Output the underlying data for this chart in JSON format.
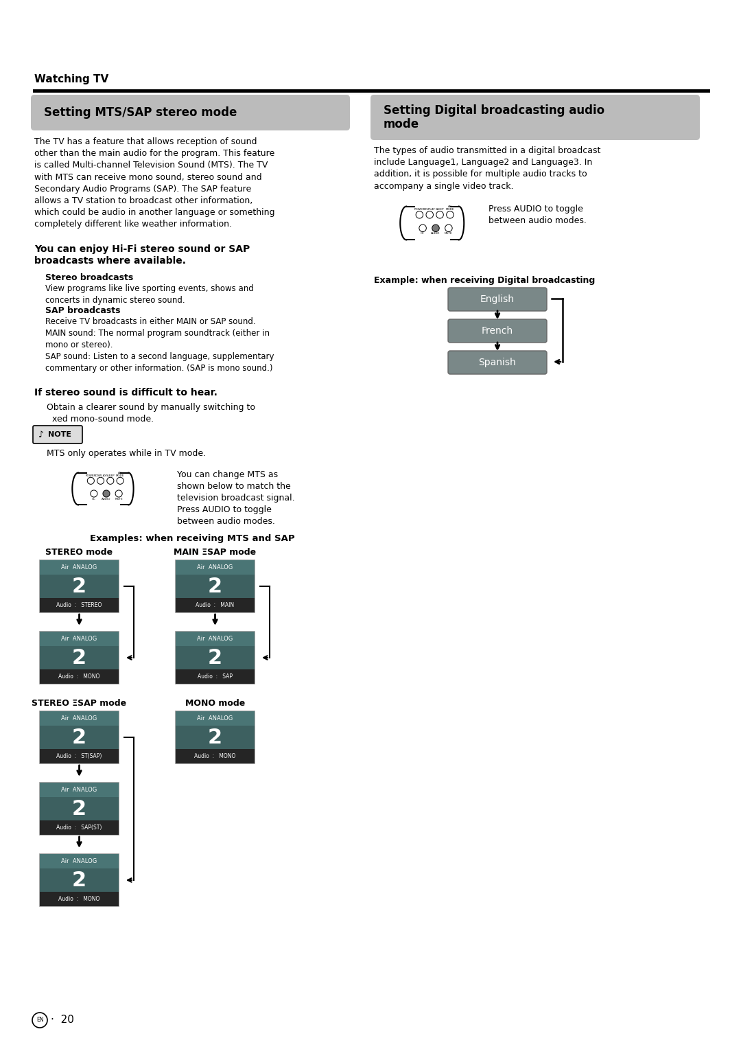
{
  "page_bg": "#ffffff",
  "watching_tv_text": "Watching TV",
  "section1_title": "Setting MTS/SAP stereo mode",
  "section2_title": "Setting Digital broadcasting audio\nmode",
  "section1_body": "The TV has a feature that allows reception of sound\nother than the main audio for the program. This feature\nis called Multi-channel Television Sound (MTS). The TV\nwith MTS can receive mono sound, stereo sound and\nSecondary Audio Programs (SAP). The SAP feature\nallows a TV station to broadcast other information,\nwhich could be audio in another language or something\ncompletely different like weather information.",
  "section2_body": "The types of audio transmitted in a digital broadcast\ninclude Language1, Language2 and Language3. In\naddition, it is possible for multiple audio tracks to\naccompany a single video track.",
  "hifi_title": "You can enjoy Hi-Fi stereo sound or SAP\nbroadcasts where available.",
  "stereo_bcast_title": "Stereo broadcasts",
  "stereo_bcast_body": "View programs like live sporting events, shows and\nconcerts in dynamic stereo sound.",
  "sap_bcast_title": "SAP broadcasts",
  "sap_bcast_body": "Receive TV broadcasts in either MAIN or SAP sound.\nMAIN sound: The normal program soundtrack (either in\nmono or stereo).\nSAP sound: Listen to a second language, supplementary\ncommentary or other information. (SAP is mono sound.)",
  "difficult_title": "If stereo sound is difficult to hear.",
  "difficult_body": "Obtain a clearer sound by manually switching to\n  xed mono-sound mode.",
  "note_text": "MTS only operates while in TV mode.",
  "remote_text1": "You can change MTS as\nshown below to match the\ntelevision broadcast signal.\nPress AUDIO to toggle\nbetween audio modes.",
  "press_audio_text": "Press AUDIO to toggle\nbetween audio modes.",
  "examples_mts_title": "Examples: when receiving MTS and SAP",
  "example_digital_title": "Example: when receiving Digital broadcasting",
  "stereo_mode_label": "STEREO mode",
  "main_nsap_label": "MAIN ΞSAP mode",
  "stereo_nsap_label": "STEREO ΞSAP mode",
  "mono_mode_label": "MONO mode",
  "header_bg_color": "#bbbbbb",
  "tv_header_color": "#4a7575",
  "tv_mid_color": "#3d6060",
  "tv_bar_color": "#252525",
  "lang_box_color": "#7a8888",
  "page_number_text": "20"
}
